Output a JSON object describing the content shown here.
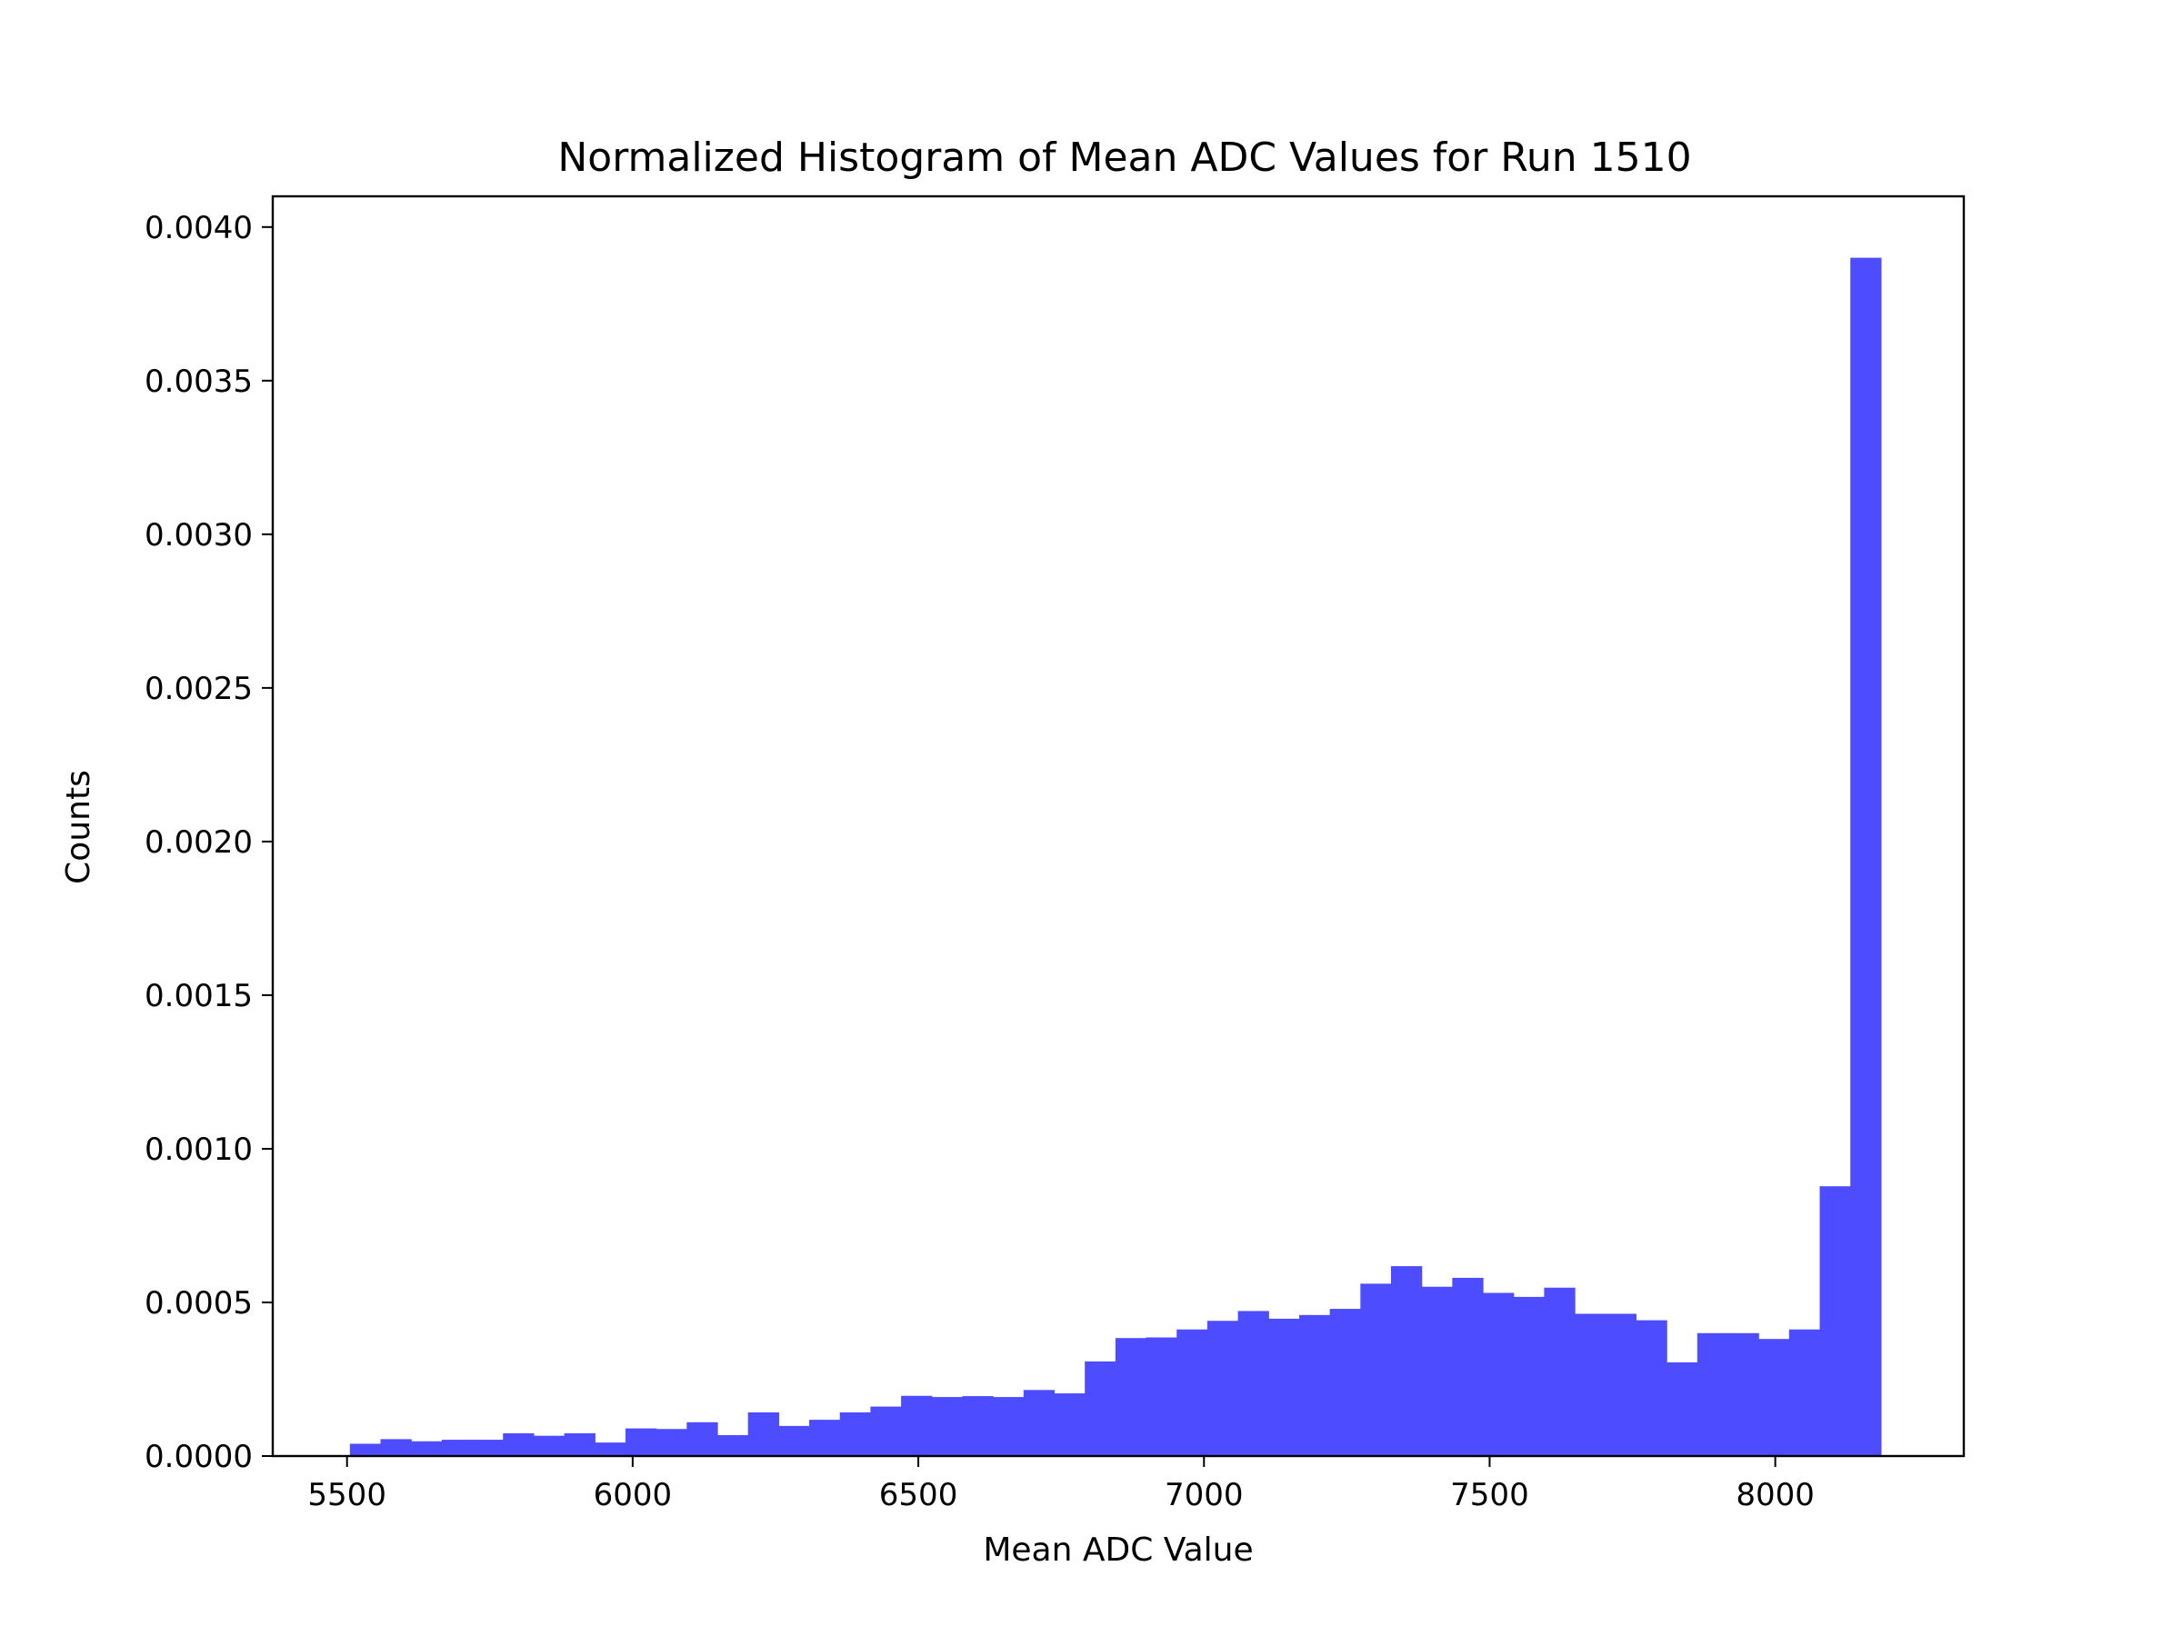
{
  "chart_data": {
    "type": "bar",
    "title": "Normalized Histogram of Mean ADC Values for Run 1510",
    "xlabel": "Mean ADC Value",
    "ylabel": "Counts",
    "xlim": [
      5370,
      8330
    ],
    "ylim": [
      0,
      0.0041
    ],
    "xticks": [
      5500,
      6000,
      6500,
      7000,
      7500,
      8000
    ],
    "yticks": [
      0.0,
      0.0005,
      0.001,
      0.0015,
      0.002,
      0.0025,
      0.003,
      0.0035,
      0.004
    ],
    "ytick_labels": [
      "0.0000",
      "0.0005",
      "0.0010",
      "0.0015",
      "0.0020",
      "0.0025",
      "0.0030",
      "0.0035",
      "0.0040"
    ],
    "bin_edges": [
      5505,
      5558.6,
      5612.2,
      5665.8,
      5719.4,
      5773,
      5826.6,
      5880.2,
      5933.8,
      5987.4,
      6041,
      6094.6,
      6148.2,
      6201.8,
      6255.4,
      6309,
      6362.6,
      6416.2,
      6469.8,
      6523.4,
      6577,
      6630.6,
      6684.2,
      6737.8,
      6791.4,
      6845,
      6898.6,
      6952.2,
      7005.8,
      7059.4,
      7113,
      7166.6,
      7220.2,
      7273.8,
      7327.4,
      7381,
      7434.6,
      7488.2,
      7541.8,
      7595.4,
      7649,
      7702.6,
      7756.2,
      7809.8,
      7863.4,
      7917,
      7970.6,
      8024.2,
      8077.8,
      8131.4,
      8185
    ],
    "values": [
      4e-05,
      5.5e-05,
      4.8e-05,
      5.3e-05,
      5.3e-05,
      7.4e-05,
      6.6e-05,
      7.4e-05,
      4.4e-05,
      9e-05,
      8.8e-05,
      0.00011,
      6.8e-05,
      0.000142,
      9.8e-05,
      0.000118,
      0.000142,
      0.000161,
      0.000196,
      0.000192,
      0.000195,
      0.000192,
      0.000215,
      0.000204,
      0.000308,
      0.000384,
      0.000386,
      0.000412,
      0.00044,
      0.000472,
      0.000447,
      0.000459,
      0.000479,
      0.000561,
      0.000618,
      0.000551,
      0.00058,
      0.000531,
      0.000518,
      0.000548,
      0.000463,
      0.000463,
      0.000442,
      0.000305,
      0.0004,
      0.0004,
      0.000381,
      0.000412,
      0.000878,
      0.0039
    ],
    "bar_color": "#4d4dff"
  }
}
